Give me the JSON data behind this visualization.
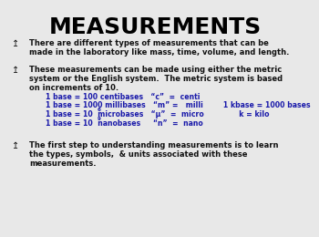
{
  "title": "MEASUREMENTS",
  "title_fontsize": 18,
  "title_color": "#000000",
  "title_weight": "bold",
  "bg_color": "#e8e8e8",
  "body_color": "#111111",
  "blue_color": "#1a1aaa",
  "body_fontsize": 6.0,
  "blue_fontsize": 5.6,
  "sup_fontsize": 4.0,
  "paragraph1_line1": "There are different types of measurements that can be",
  "paragraph1_line2": "made in the laboratory like mass, time, volume, and length.",
  "paragraph2_line1": "These measurements can be made using either the metric",
  "paragraph2_line2": "system or the English system.  The metric system is based",
  "paragraph2_line3": "on increments of 10.",
  "blue_line1": "1 base = 100 centibases   “c”  =  centi",
  "blue_line2a": "1 base = 1000 millibases   “m” =   milli        1 kbase = 1000 bases",
  "blue_line3a": "1 base = 10  microbases   “μ”  =  micro              k = kilo",
  "blue_line3_sup": "6",
  "blue_line4a": "1 base = 10  nanobases     “n”  =  nano",
  "blue_line4_sup": "9",
  "paragraph3_line1": "The first step to understanding measurements is to learn",
  "paragraph3_line2": "the types, symbols,  & units associated with these",
  "paragraph3_line3": "measurements.",
  "icon": "↥"
}
